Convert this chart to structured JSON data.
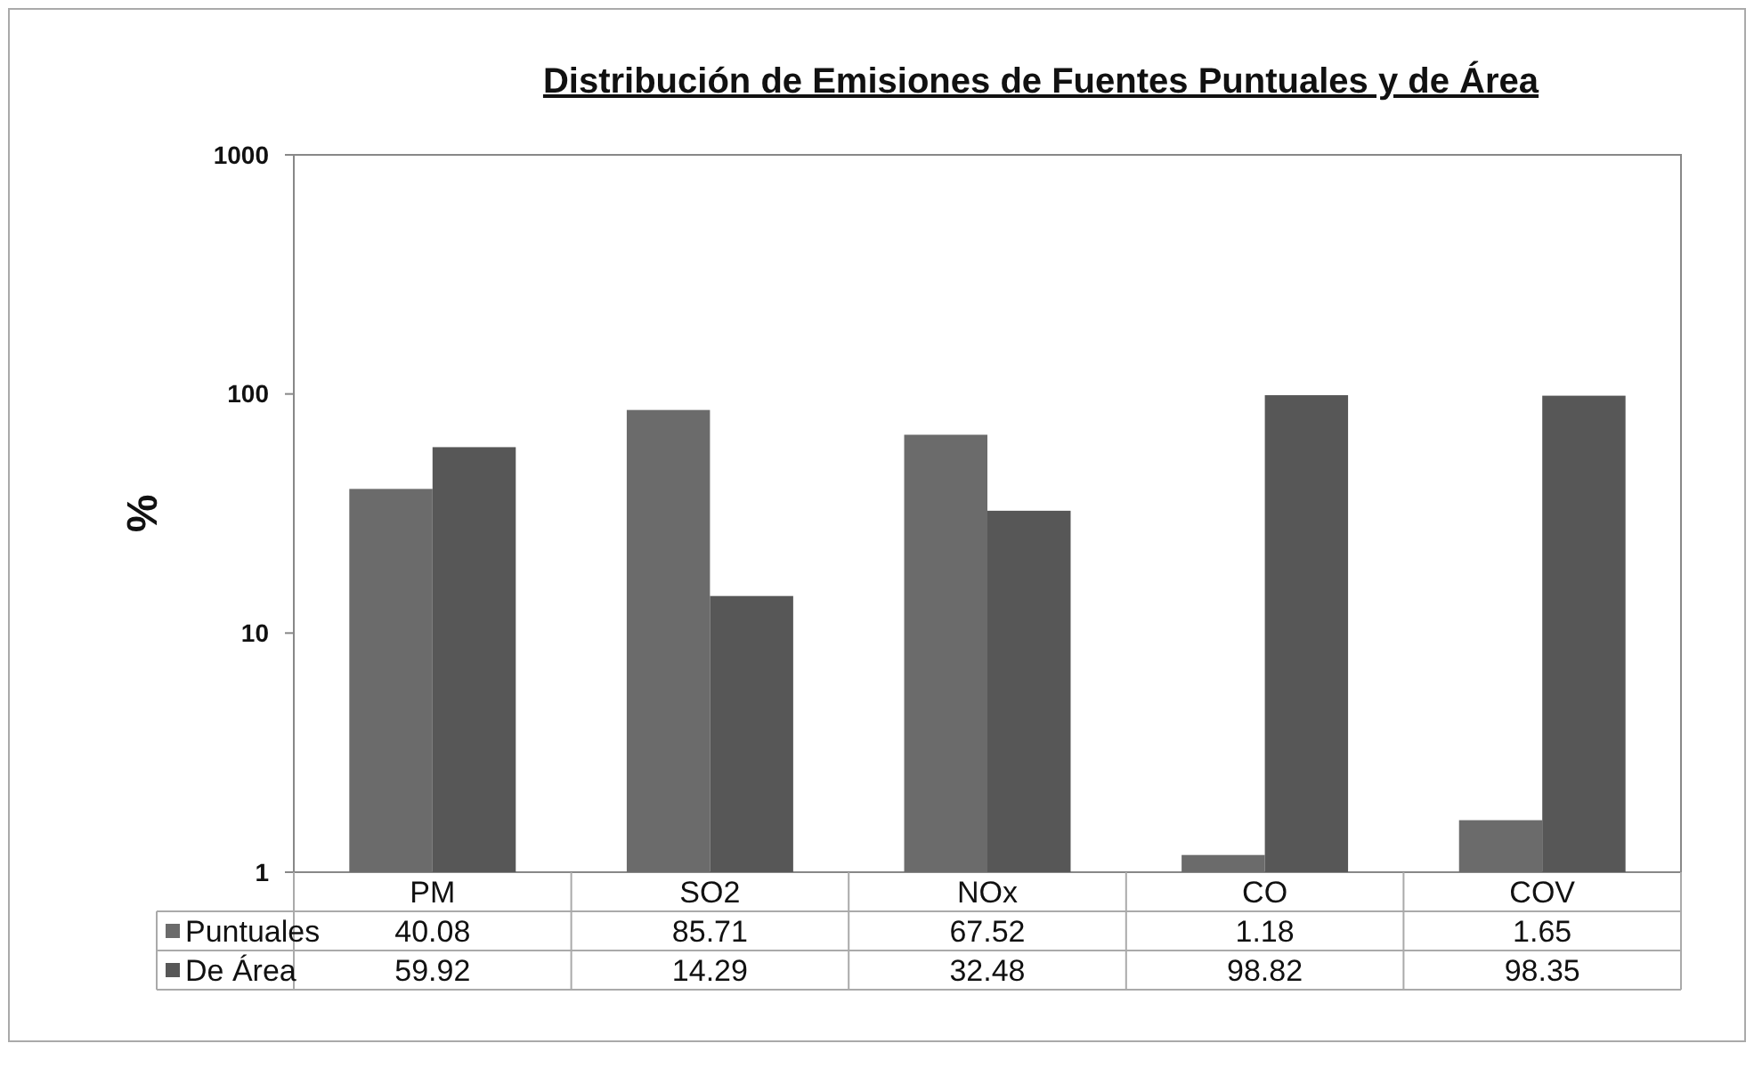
{
  "chart_data": {
    "type": "bar",
    "title": "Distribución de Emisiones de Fuentes Puntuales y de Área",
    "ylabel": "%",
    "categories": [
      "PM",
      "SO2",
      "NOx",
      "CO",
      "COV"
    ],
    "series": [
      {
        "name": "Puntuales",
        "color": "#6b6b6b",
        "values": [
          40.08,
          85.71,
          67.52,
          1.18,
          1.65
        ]
      },
      {
        "name": "De Área",
        "color": "#575757",
        "values": [
          59.92,
          14.29,
          32.48,
          98.82,
          98.35
        ]
      }
    ],
    "ylim": [
      1,
      1000
    ],
    "yticks": [
      1,
      10,
      100,
      1000
    ],
    "log": true,
    "data_labels": true,
    "legend": "bottom left"
  }
}
